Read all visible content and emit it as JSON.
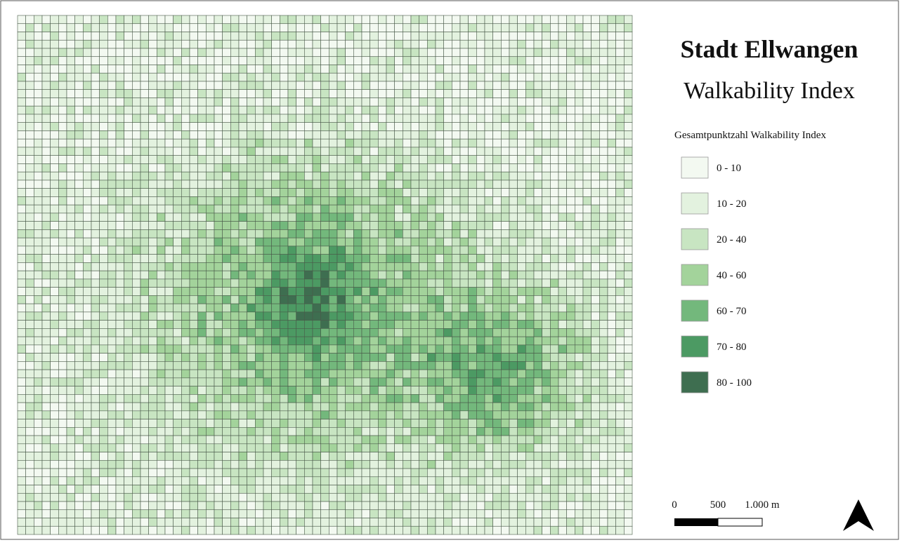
{
  "title": "Stadt Ellwangen",
  "subtitle": "Walkability Index",
  "legend": {
    "title": "Gesamtpunktzahl Walkability Index",
    "items": [
      {
        "label": "0 - 10",
        "color": "#f3f9f1"
      },
      {
        "label": "10 - 20",
        "color": "#e3f2df"
      },
      {
        "label": "20 - 40",
        "color": "#c8e5c2"
      },
      {
        "label": "40 - 60",
        "color": "#a3d39b"
      },
      {
        "label": "60 - 70",
        "color": "#73b87c"
      },
      {
        "label": "70 - 80",
        "color": "#4c9a63"
      },
      {
        "label": "80 - 100",
        "color": "#3e6e50"
      }
    ]
  },
  "scale_bar": {
    "labels": [
      "0",
      "500",
      "1.000 m"
    ]
  }
}
